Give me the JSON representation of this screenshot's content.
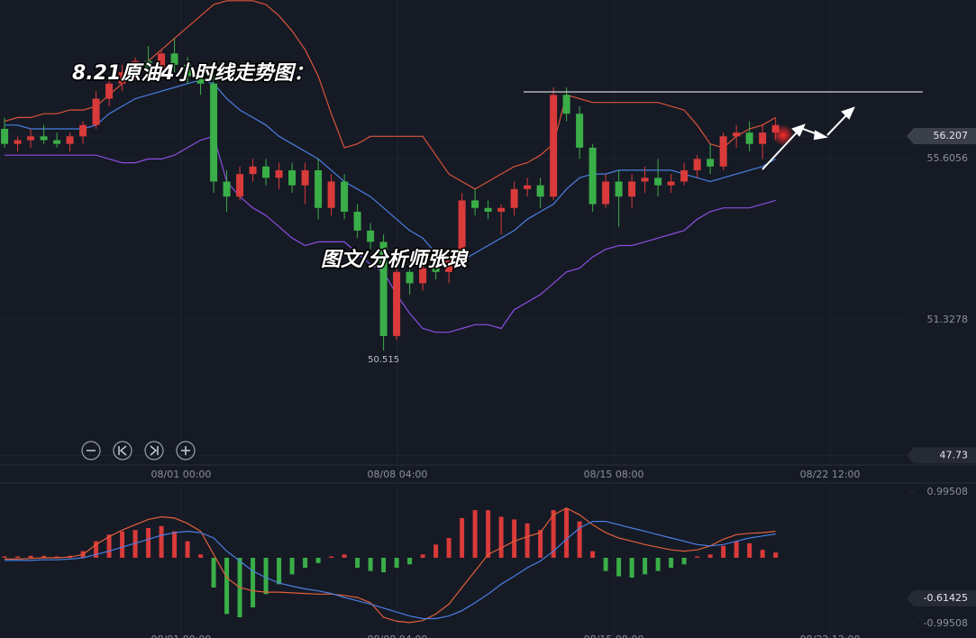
{
  "chart_data": [
    {
      "type": "candlestick",
      "title": "8.21原油4小时线走势图：",
      "subtitle": "图文/分析师张琅",
      "categories": [
        null,
        null,
        null,
        null,
        null,
        null,
        null,
        null,
        null,
        null,
        null,
        null,
        null,
        null,
        null,
        null,
        null,
        null,
        null,
        null,
        null,
        null,
        null,
        null,
        null,
        null,
        null,
        null,
        null,
        null,
        null,
        null,
        null,
        null,
        null,
        null,
        null,
        null,
        null,
        null,
        null,
        null,
        null,
        null,
        null,
        null,
        null,
        null,
        null,
        null,
        null,
        null,
        null,
        null,
        null,
        null,
        null,
        null,
        null,
        null
      ],
      "open": [
        56.4,
        56.0,
        56.1,
        56.2,
        56.1,
        56.0,
        56.2,
        56.5,
        57.2,
        57.6,
        57.9,
        58.2,
        58.0,
        58.4,
        58.1,
        57.8,
        57.6,
        55.0,
        54.6,
        55.2,
        55.4,
        55.1,
        55.3,
        54.9,
        55.3,
        54.3,
        55.0,
        54.2,
        53.7,
        53.4,
        50.9,
        52.6,
        52.3,
        52.7,
        52.6,
        52.9,
        54.5,
        54.3,
        54.2,
        54.3,
        54.8,
        54.9,
        54.6,
        57.3,
        56.8,
        55.9,
        54.4,
        55.0,
        54.6,
        55.0,
        55.1,
        54.9,
        55.0,
        55.3,
        55.6,
        55.4,
        56.2,
        56.3,
        56.0,
        56.3
      ],
      "high": [
        56.7,
        56.2,
        56.4,
        56.5,
        56.3,
        56.3,
        56.6,
        57.4,
        57.7,
        58.1,
        58.3,
        58.6,
        58.5,
        58.8,
        58.3,
        58.1,
        57.9,
        55.3,
        55.4,
        55.6,
        55.6,
        55.5,
        55.5,
        55.5,
        55.6,
        55.2,
        55.2,
        54.4,
        53.9,
        53.6,
        52.8,
        53.0,
        52.9,
        53.1,
        53.0,
        54.7,
        54.8,
        54.5,
        54.4,
        55.0,
        55.1,
        55.1,
        57.5,
        57.5,
        57.0,
        56.0,
        55.2,
        55.3,
        55.2,
        55.4,
        55.6,
        55.2,
        55.5,
        55.7,
        56.0,
        56.3,
        56.5,
        56.6,
        56.5,
        56.7
      ],
      "low": [
        55.9,
        55.8,
        55.9,
        56.0,
        55.9,
        55.8,
        56.0,
        56.4,
        57.0,
        57.4,
        57.7,
        57.9,
        57.8,
        57.9,
        57.6,
        57.3,
        54.7,
        54.2,
        54.5,
        55.0,
        54.9,
        54.8,
        54.7,
        54.4,
        54.0,
        54.1,
        54.0,
        53.5,
        53.2,
        50.515,
        50.8,
        52.0,
        52.1,
        52.4,
        52.3,
        52.8,
        54.1,
        54.0,
        53.6,
        54.1,
        54.6,
        54.3,
        54.5,
        56.6,
        55.6,
        54.2,
        54.3,
        53.8,
        54.3,
        54.7,
        54.6,
        54.7,
        54.9,
        55.1,
        55.2,
        55.3,
        55.9,
        55.8,
        55.6,
        56.1
      ],
      "close": [
        56.0,
        56.1,
        56.2,
        56.1,
        56.0,
        56.2,
        56.5,
        57.2,
        57.6,
        57.9,
        58.2,
        58.0,
        58.4,
        58.1,
        57.8,
        57.6,
        55.0,
        54.6,
        55.2,
        55.4,
        55.1,
        55.3,
        54.9,
        55.3,
        54.3,
        55.0,
        54.2,
        53.7,
        53.4,
        50.9,
        52.6,
        52.3,
        52.7,
        52.6,
        52.9,
        54.5,
        54.3,
        54.2,
        54.3,
        54.8,
        54.9,
        54.6,
        57.3,
        56.8,
        55.9,
        54.4,
        55.0,
        54.6,
        55.0,
        55.1,
        54.9,
        55.0,
        55.3,
        55.6,
        55.4,
        56.2,
        56.3,
        56.0,
        56.3,
        56.5
      ],
      "up_color": "#d93a3a",
      "down_color": "#3aae48",
      "bands": [
        {
          "color": "#d9533a",
          "values": [
            56.6,
            56.7,
            56.7,
            56.8,
            56.8,
            56.9,
            56.9,
            57.0,
            57.3,
            57.6,
            57.9,
            58.2,
            58.5,
            58.8,
            59.1,
            59.4,
            59.7,
            59.8,
            59.8,
            59.8,
            59.7,
            59.4,
            59.0,
            58.5,
            57.8,
            56.8,
            55.9,
            56.0,
            56.2,
            56.2,
            56.2,
            56.2,
            56.2,
            55.7,
            55.2,
            55.0,
            54.8,
            55.0,
            55.2,
            55.4,
            55.5,
            55.7,
            56.0,
            57.3,
            57.2,
            57.1,
            57.1,
            57.1,
            57.1,
            57.1,
            57.1,
            57.0,
            56.9,
            56.5,
            56.0,
            55.9,
            56.2,
            56.4,
            56.5,
            56.7
          ]
        },
        {
          "color": "#4a7fe0",
          "values": [
            56.5,
            56.5,
            56.4,
            56.4,
            56.4,
            56.4,
            56.4,
            56.5,
            56.8,
            57.0,
            57.2,
            57.3,
            57.4,
            57.5,
            57.6,
            57.7,
            57.6,
            57.2,
            56.9,
            56.7,
            56.5,
            56.2,
            56.0,
            55.8,
            55.6,
            55.3,
            55.0,
            54.8,
            54.6,
            54.3,
            54.0,
            53.7,
            53.5,
            53.1,
            52.8,
            52.9,
            53.1,
            53.3,
            53.5,
            53.7,
            54.0,
            54.2,
            54.4,
            54.8,
            55.1,
            55.2,
            55.2,
            55.3,
            55.3,
            55.3,
            55.3,
            55.3,
            55.2,
            55.1,
            55.0,
            55.1,
            55.2,
            55.3,
            55.4,
            55.6
          ]
        },
        {
          "color": "#8a4fe0",
          "values": [
            55.7,
            55.7,
            55.7,
            55.7,
            55.7,
            55.7,
            55.7,
            55.7,
            55.6,
            55.5,
            55.5,
            55.6,
            55.6,
            55.7,
            55.9,
            56.1,
            56.2,
            55.0,
            54.6,
            54.3,
            54.1,
            53.8,
            53.5,
            53.3,
            53.4,
            53.4,
            53.4,
            53.1,
            52.8,
            52.6,
            52.0,
            51.5,
            51.1,
            51.0,
            51.0,
            51.1,
            51.2,
            51.2,
            51.1,
            51.6,
            51.8,
            52.0,
            52.3,
            52.6,
            52.7,
            53.0,
            53.2,
            53.3,
            53.3,
            53.4,
            53.5,
            53.6,
            53.7,
            54.0,
            54.2,
            54.3,
            54.3,
            54.3,
            54.4,
            54.5
          ]
        }
      ],
      "low_label_index": 29,
      "xlim": [
        -0.35,
        69.3
      ],
      "xticks": [
        {
          "value": 13.51,
          "label": "08/01 00:00"
        },
        {
          "value": 30.06,
          "label": "08/08 04:00"
        },
        {
          "value": 46.62,
          "label": "08/15 08:00"
        },
        {
          "value": 63.17,
          "label": "08/22 12:00"
        }
      ],
      "ylim": [
        47.5,
        59.82
      ],
      "yticks": [
        56.207,
        55.6056,
        51.3278,
        47.73
      ],
      "grid": true
    },
    {
      "type": "macd",
      "values": [
        0.02,
        0.02,
        0.03,
        0.03,
        0.02,
        0.03,
        0.1,
        0.25,
        0.35,
        0.4,
        0.42,
        0.45,
        0.48,
        0.4,
        0.25,
        0.05,
        -0.45,
        -0.85,
        -0.9,
        -0.75,
        -0.55,
        -0.4,
        -0.25,
        -0.15,
        -0.08,
        0.02,
        0.05,
        -0.15,
        -0.2,
        -0.22,
        -0.15,
        -0.1,
        0.05,
        0.2,
        0.3,
        0.6,
        0.72,
        0.72,
        0.62,
        0.58,
        0.52,
        0.42,
        0.72,
        0.75,
        0.55,
        0.1,
        -0.2,
        -0.28,
        -0.3,
        -0.25,
        -0.2,
        -0.15,
        -0.1,
        0.02,
        0.05,
        0.18,
        0.25,
        0.22,
        0.12,
        0.08
      ],
      "up_color": "#d93a3a",
      "down_color": "#3aae48",
      "lines": [
        {
          "color": "#e0603a",
          "values": [
            -0.02,
            -0.02,
            -0.01,
            0,
            0,
            0.01,
            0.05,
            0.2,
            0.32,
            0.42,
            0.5,
            0.58,
            0.62,
            0.6,
            0.52,
            0.4,
            0.05,
            -0.3,
            -0.45,
            -0.5,
            -0.52,
            -0.52,
            -0.53,
            -0.54,
            -0.55,
            -0.55,
            -0.57,
            -0.6,
            -0.68,
            -0.9,
            -0.96,
            -0.98,
            -0.95,
            -0.85,
            -0.7,
            -0.45,
            -0.2,
            0.05,
            0.15,
            0.25,
            0.32,
            0.38,
            0.65,
            0.75,
            0.65,
            0.5,
            0.38,
            0.3,
            0.25,
            0.2,
            0.16,
            0.12,
            0.1,
            0.12,
            0.18,
            0.28,
            0.35,
            0.37,
            0.38,
            0.4
          ]
        },
        {
          "color": "#4a7fe0",
          "values": [
            -0.04,
            -0.04,
            -0.04,
            -0.03,
            -0.03,
            -0.02,
            0,
            0.05,
            0.1,
            0.16,
            0.22,
            0.28,
            0.34,
            0.38,
            0.4,
            0.38,
            0.3,
            0.1,
            -0.05,
            -0.2,
            -0.3,
            -0.38,
            -0.43,
            -0.47,
            -0.5,
            -0.54,
            -0.6,
            -0.65,
            -0.7,
            -0.76,
            -0.82,
            -0.88,
            -0.92,
            -0.92,
            -0.88,
            -0.8,
            -0.68,
            -0.55,
            -0.4,
            -0.28,
            -0.15,
            -0.05,
            0.1,
            0.28,
            0.45,
            0.55,
            0.55,
            0.5,
            0.45,
            0.4,
            0.35,
            0.3,
            0.25,
            0.2,
            0.18,
            0.2,
            0.25,
            0.3,
            0.33,
            0.36
          ]
        }
      ],
      "xlim": [
        -0.35,
        69.3
      ],
      "xticks": [
        {
          "value": 13.51,
          "label": "08/01 00:00"
        },
        {
          "value": 30.06,
          "label": "08/08 04:00"
        },
        {
          "value": 46.62,
          "label": "08/15 08:00"
        },
        {
          "value": 63.17,
          "label": "08/22 12:00"
        }
      ],
      "ylim": [
        -1.213,
        1.117
      ],
      "yticks": [
        0.99508,
        -0.61425,
        -0.99508
      ]
    }
  ]
}
